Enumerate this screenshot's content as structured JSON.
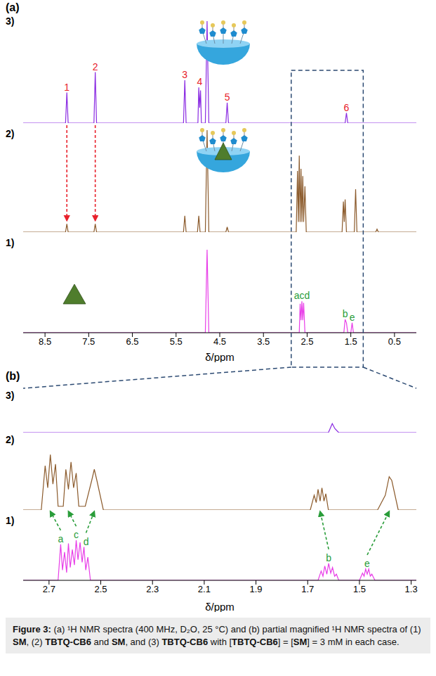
{
  "chart_data": [
    {
      "type": "line",
      "title": "(a)",
      "x_label": "δ/ppm",
      "xlim": [
        9.0,
        0.0
      ],
      "xticks": [
        8.5,
        7.5,
        6.5,
        5.5,
        4.5,
        3.5,
        2.5,
        1.5,
        0.5
      ],
      "ylim": [
        0,
        100
      ],
      "tick_labels": "x",
      "grid": false,
      "series": [
        {
          "name": "3)",
          "color": "#8a2be2",
          "x": [
            9.0,
            8.03,
            8.0,
            7.97,
            7.38,
            7.35,
            7.32,
            5.33,
            5.3,
            5.27,
            5.0,
            4.98,
            4.96,
            4.94,
            4.92,
            4.83,
            4.79,
            4.75,
            4.36,
            4.33,
            4.3,
            1.63,
            1.6,
            1.57,
            0.0
          ],
          "values": [
            0,
            0,
            30,
            0,
            0,
            50,
            0,
            0,
            42,
            0,
            0,
            35,
            15,
            32,
            0,
            0,
            100,
            0,
            0,
            20,
            0,
            0,
            10,
            0,
            0
          ],
          "annotations": [
            {
              "x": 8.0,
              "text": "1",
              "color": "#e8212b"
            },
            {
              "x": 7.35,
              "text": "2",
              "color": "#e8212b"
            },
            {
              "x": 5.3,
              "text": "3",
              "color": "#e8212b"
            },
            {
              "x": 4.96,
              "text": "4",
              "color": "#e8212b"
            },
            {
              "x": 4.33,
              "text": "5",
              "color": "#e8212b"
            },
            {
              "x": 1.6,
              "text": "6",
              "color": "#e8212b"
            }
          ]
        },
        {
          "name": "2)",
          "color": "#8b5a2b",
          "x": [
            9.0,
            8.03,
            8.0,
            7.97,
            7.38,
            7.35,
            7.32,
            5.33,
            5.3,
            5.27,
            5.01,
            4.98,
            4.95,
            4.83,
            4.79,
            4.75,
            4.36,
            4.33,
            4.3,
            2.75,
            2.72,
            2.7,
            2.68,
            2.66,
            2.64,
            2.62,
            2.6,
            2.58,
            2.55,
            2.52,
            1.7,
            1.67,
            1.65,
            1.63,
            1.6,
            1.42,
            1.39,
            1.36,
            0.93,
            0.9,
            0.87,
            0.0
          ],
          "values": [
            0,
            0,
            8,
            0,
            0,
            8,
            0,
            0,
            16,
            0,
            0,
            16,
            0,
            0,
            100,
            0,
            0,
            5,
            0,
            0,
            60,
            10,
            75,
            10,
            62,
            10,
            55,
            10,
            45,
            0,
            0,
            30,
            10,
            32,
            0,
            0,
            42,
            0,
            0,
            3,
            0,
            0
          ],
          "annotations": []
        },
        {
          "name": "1)",
          "color": "#e83ee8",
          "x": [
            9.0,
            4.83,
            4.79,
            4.75,
            2.68,
            2.66,
            2.64,
            2.62,
            2.6,
            2.58,
            2.55,
            1.66,
            1.63,
            1.6,
            1.57,
            1.5,
            1.47,
            1.44,
            0.0
          ],
          "values": [
            0,
            0,
            100,
            0,
            0,
            35,
            15,
            38,
            15,
            36,
            0,
            0,
            16,
            12,
            0,
            0,
            12,
            0,
            0
          ],
          "annotations": [
            {
              "x": 2.62,
              "text": "acd",
              "color": "#2a9d3a"
            },
            {
              "x": 1.63,
              "text": "b",
              "color": "#2a9d3a"
            },
            {
              "x": 1.47,
              "text": "e",
              "color": "#2a9d3a"
            }
          ]
        }
      ],
      "arrows": [
        {
          "from": 8.0,
          "to": 8.0,
          "from_series": "3)",
          "to_series": "2)",
          "color": "#e8212b"
        },
        {
          "from": 7.35,
          "to": 7.35,
          "from_series": "3)",
          "to_series": "2)",
          "color": "#e8212b"
        }
      ]
    },
    {
      "type": "line",
      "title": "(b)",
      "x_label": "δ/ppm",
      "xlim": [
        2.8,
        1.28
      ],
      "xticks": [
        2.7,
        2.5,
        2.3,
        2.1,
        1.9,
        1.7,
        1.5,
        1.3
      ],
      "ylim": [
        0,
        100
      ],
      "tick_labels": "x",
      "grid": false,
      "series": [
        {
          "name": "3)",
          "color": "#8a2be2",
          "x": [
            2.8,
            1.62,
            1.605,
            1.595,
            1.58,
            1.28
          ],
          "values": [
            0,
            0,
            22,
            10,
            0,
            0
          ],
          "annotations": []
        },
        {
          "name": "2)",
          "color": "#8b5a2b",
          "x": [
            2.8,
            2.73,
            2.715,
            2.705,
            2.695,
            2.685,
            2.675,
            2.665,
            2.645,
            2.635,
            2.625,
            2.615,
            2.605,
            2.595,
            2.585,
            2.56,
            2.535,
            2.525,
            2.515,
            2.49,
            1.69,
            1.675,
            1.667,
            1.66,
            1.652,
            1.645,
            1.637,
            1.63,
            1.62,
            1.43,
            1.4,
            1.385,
            1.375,
            1.35,
            1.28
          ],
          "values": [
            0,
            0,
            60,
            30,
            75,
            35,
            62,
            5,
            5,
            55,
            28,
            65,
            30,
            50,
            5,
            5,
            40,
            55,
            40,
            0,
            0,
            20,
            10,
            28,
            12,
            30,
            12,
            22,
            0,
            0,
            20,
            45,
            40,
            0,
            0
          ],
          "annotations": []
        },
        {
          "name": "1)",
          "color": "#e83ee8",
          "x": [
            2.8,
            2.665,
            2.655,
            2.648,
            2.64,
            2.632,
            2.625,
            2.618,
            2.61,
            2.602,
            2.595,
            2.588,
            2.58,
            2.572,
            2.565,
            2.558,
            2.55,
            2.54,
            1.66,
            1.648,
            1.641,
            1.634,
            1.626,
            1.619,
            1.611,
            1.604,
            1.596,
            1.589,
            1.58,
            1.5,
            1.488,
            1.482,
            1.476,
            1.47,
            1.464,
            1.458,
            1.452,
            1.44,
            1.28
          ],
          "values": [
            0,
            0,
            70,
            20,
            55,
            15,
            72,
            25,
            60,
            30,
            78,
            40,
            74,
            35,
            65,
            20,
            45,
            0,
            0,
            18,
            8,
            28,
            12,
            33,
            14,
            25,
            8,
            12,
            0,
            0,
            14,
            8,
            22,
            12,
            22,
            8,
            12,
            0,
            0
          ],
          "annotations": [
            {
              "x": 2.655,
              "text": "a",
              "color": "#2a9d3a"
            },
            {
              "x": 2.595,
              "text": "c",
              "color": "#2a9d3a"
            },
            {
              "x": 2.557,
              "text": "d",
              "color": "#2a9d3a"
            },
            {
              "x": 1.619,
              "text": "b",
              "color": "#2a9d3a"
            },
            {
              "x": 1.47,
              "text": "e",
              "color": "#2a9d3a"
            }
          ]
        }
      ],
      "arrows": [
        {
          "from": 2.655,
          "to": 2.695,
          "from_series": "1)",
          "to_series": "2)",
          "color": "#2a9d3a"
        },
        {
          "from": 2.595,
          "to": 2.625,
          "from_series": "1)",
          "to_series": "2)",
          "color": "#2a9d3a"
        },
        {
          "from": 2.557,
          "to": 2.525,
          "from_series": "1)",
          "to_series": "2)",
          "color": "#2a9d3a"
        },
        {
          "from": 1.619,
          "to": 1.652,
          "from_series": "1)",
          "to_series": "2)",
          "color": "#2a9d3a"
        },
        {
          "from": 1.47,
          "to": 1.385,
          "from_series": "1)",
          "to_series": "2)",
          "color": "#2a9d3a"
        }
      ]
    }
  ],
  "caption": {
    "label": "Figure 3:",
    "text": "(a) ¹H NMR spectra (400 MHz, D₂O, 25 °C) and (b) partial magnified ¹H NMR spectra of (1) SM, (2) TBTQ-CB6 and SM, and (3) TBTQ-CB6 with [TBTQ-CB6] = [SM] = 3 mM in each case.",
    "bold": [
      "TBTQ-CB6",
      "SM"
    ]
  }
}
